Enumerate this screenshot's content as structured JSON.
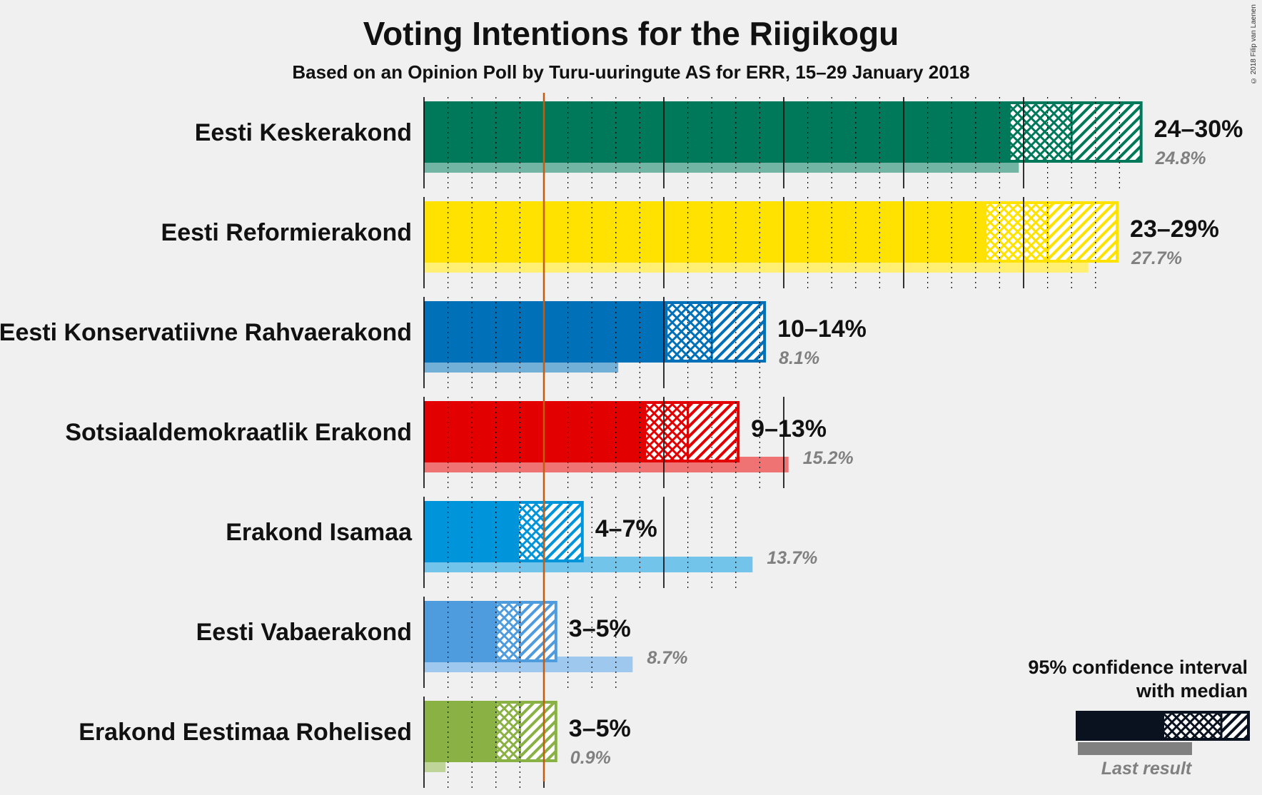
{
  "chart_data": {
    "type": "bar",
    "orientation": "horizontal",
    "title": "Voting Intentions for the Riigikogu",
    "subtitle": "Based on an Opinion Poll by Turu-uuringute AS for ERR, 15–29 January 2018",
    "credit": "© 2018 Filip van Laenen",
    "threshold": 5,
    "xlim": [
      0,
      30
    ],
    "series": [
      {
        "name": "Eesti Keskerakond",
        "color": "#00795a",
        "low": 24.4,
        "median": 27.0,
        "high": 29.9,
        "last": 24.8,
        "range_label": "24–30%",
        "last_label": "24.8%"
      },
      {
        "name": "Eesti Reformierakond",
        "color": "#ffe200",
        "low": 23.4,
        "median": 26.0,
        "high": 28.9,
        "last": 27.7,
        "range_label": "23–29%",
        "last_label": "27.7%"
      },
      {
        "name": "Eesti Konservatiivne Rahvaerakond",
        "color": "#0070b8",
        "low": 10.1,
        "median": 12.0,
        "high": 14.2,
        "last": 8.1,
        "range_label": "10–14%",
        "last_label": "8.1%"
      },
      {
        "name": "Sotsiaaldemokraatlik Erakond",
        "color": "#e20000",
        "low": 9.2,
        "median": 11.0,
        "high": 13.1,
        "last": 15.2,
        "range_label": "9–13%",
        "last_label": "15.2%"
      },
      {
        "name": "Erakond Isamaa",
        "color": "#0094da",
        "low": 3.9,
        "median": 5.0,
        "high": 6.6,
        "last": 13.7,
        "range_label": "4–7%",
        "last_label": "13.7%"
      },
      {
        "name": "Eesti Vabaerakond",
        "color": "#4e9bde",
        "low": 3.0,
        "median": 4.0,
        "high": 5.5,
        "last": 8.7,
        "range_label": "3–5%",
        "last_label": "8.7%"
      },
      {
        "name": "Erakond Eestimaa Rohelised",
        "color": "#8ab144",
        "low": 3.0,
        "median": 4.0,
        "high": 5.5,
        "last": 0.9,
        "range_label": "3–5%",
        "last_label": "0.9%"
      }
    ],
    "legend": {
      "title_line1": "95% confidence interval",
      "title_line2": "with median",
      "last_result": "Last result",
      "placement": "bottom-right"
    }
  }
}
